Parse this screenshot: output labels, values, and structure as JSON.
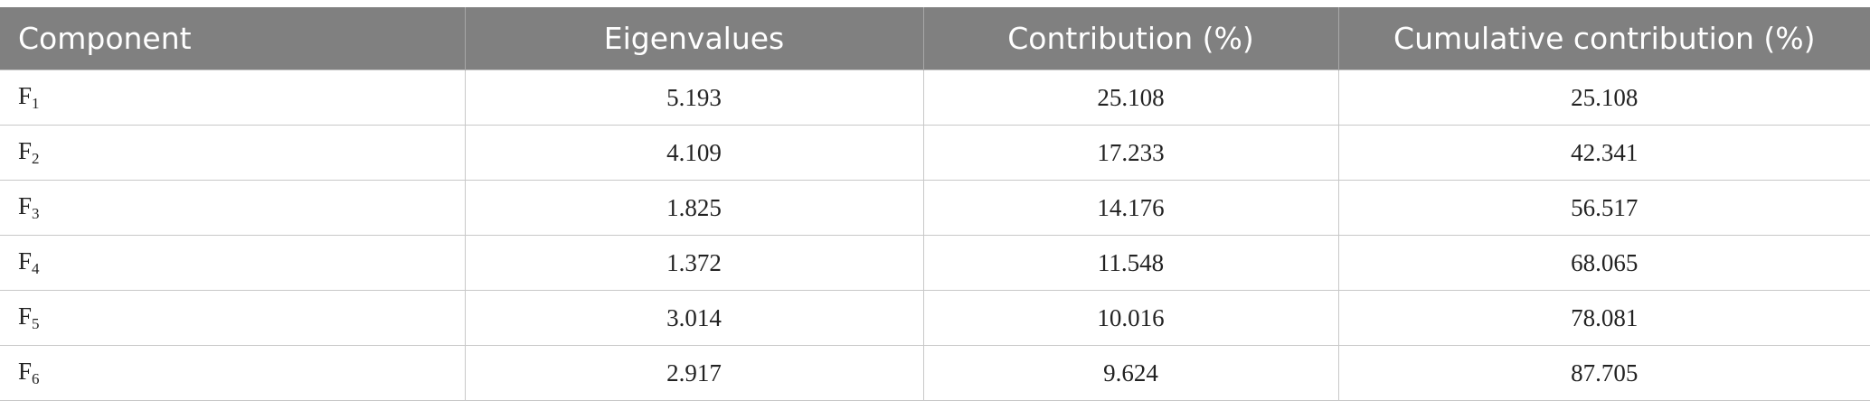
{
  "table": {
    "header": [
      "Component",
      "Eigenvalues",
      "Contribution (%)",
      "Cumulative contribution (%)"
    ],
    "rows": [
      [
        {
          "base": "F",
          "sub": "1"
        },
        5.193,
        25.108,
        25.108
      ],
      [
        {
          "base": "F",
          "sub": "2"
        },
        4.109,
        17.233,
        42.341
      ],
      [
        {
          "base": "F",
          "sub": "3"
        },
        1.825,
        14.176,
        56.517
      ],
      [
        {
          "base": "F",
          "sub": "4"
        },
        1.372,
        11.548,
        68.065
      ],
      [
        {
          "base": "F",
          "sub": "5"
        },
        3.014,
        10.016,
        78.081
      ],
      [
        {
          "base": "F",
          "sub": "6"
        },
        2.917,
        9.624,
        87.705
      ]
    ]
  }
}
